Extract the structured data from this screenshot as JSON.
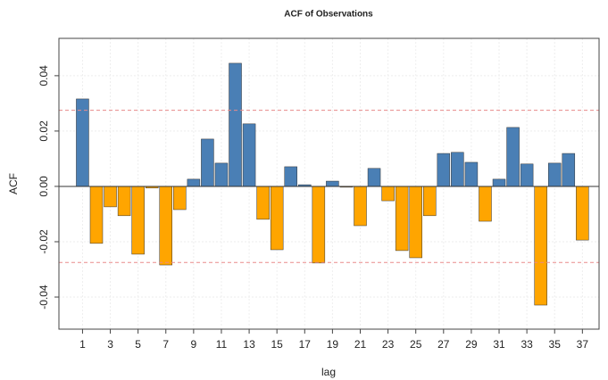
{
  "chart_data": {
    "type": "bar",
    "title": "ACF of Observations",
    "x_label": "lag",
    "y_label": "ACF",
    "x": [
      1,
      2,
      3,
      4,
      5,
      6,
      7,
      8,
      9,
      10,
      11,
      12,
      13,
      14,
      15,
      16,
      17,
      18,
      19,
      20,
      21,
      22,
      23,
      24,
      25,
      26,
      27,
      28,
      29,
      30,
      31,
      32,
      33,
      34,
      35,
      36,
      37
    ],
    "values": [
      0.0316,
      -0.0206,
      -0.0074,
      -0.0106,
      -0.0245,
      -0.0006,
      -0.0284,
      -0.0084,
      0.0026,
      0.0171,
      0.0084,
      0.0445,
      0.0226,
      -0.0119,
      -0.0229,
      0.0071,
      0.0006,
      -0.0277,
      0.0019,
      -0.0003,
      -0.0142,
      0.0065,
      -0.0052,
      -0.0232,
      -0.0258,
      -0.0106,
      0.0119,
      0.0123,
      0.0087,
      -0.0126,
      0.0026,
      0.0213,
      0.0081,
      -0.0429,
      0.0084,
      0.0119,
      -0.0194
    ],
    "positive_color": "#4a7fb5",
    "negative_color": "#ffa500",
    "confidence_bounds": [
      0.0275,
      -0.0275
    ],
    "confidence_color": "#e88a8a",
    "xlim": [
      -0.7,
      38.2
    ],
    "xticks": [
      1,
      3,
      5,
      7,
      9,
      11,
      13,
      15,
      17,
      19,
      21,
      23,
      25,
      27,
      29,
      31,
      33,
      35,
      37
    ],
    "ylim": [
      -0.0516,
      0.0535
    ],
    "yticks": [
      -0.04,
      -0.02,
      {
        "value": 0,
        "label": "0.00"
      },
      0.02,
      0.04
    ],
    "grid": true
  }
}
